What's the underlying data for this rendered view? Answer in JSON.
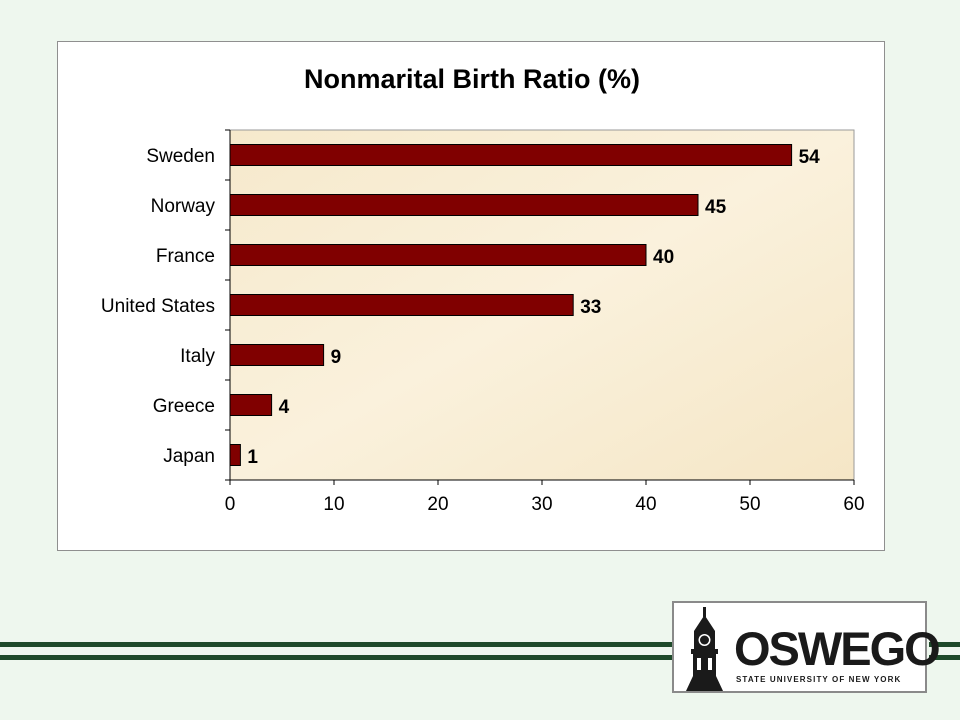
{
  "chart_data": {
    "type": "bar",
    "orientation": "horizontal",
    "title": "Nonmarital Birth Ratio (%)",
    "xlabel": "",
    "ylabel": "",
    "categories": [
      "Sweden",
      "Norway",
      "France",
      "United States",
      "Italy",
      "Greece",
      "Japan"
    ],
    "values": [
      54,
      45,
      40,
      33,
      9,
      4,
      1
    ],
    "xlim": [
      0,
      60
    ],
    "xticks": [
      0,
      10,
      20,
      30,
      40,
      50,
      60
    ],
    "data_labels": true,
    "grid": false,
    "legend": "none",
    "bar_color": "#800000"
  },
  "colors": {
    "plot_background": "#f7ecd0",
    "bar": "#800000",
    "footer_lines": "#1e4a2a",
    "page_background": "#eef7ee"
  },
  "logo": {
    "word": "OSWEGO",
    "subtitle": "STATE UNIVERSITY OF NEW YORK",
    "icon": "clock-tower-icon"
  }
}
